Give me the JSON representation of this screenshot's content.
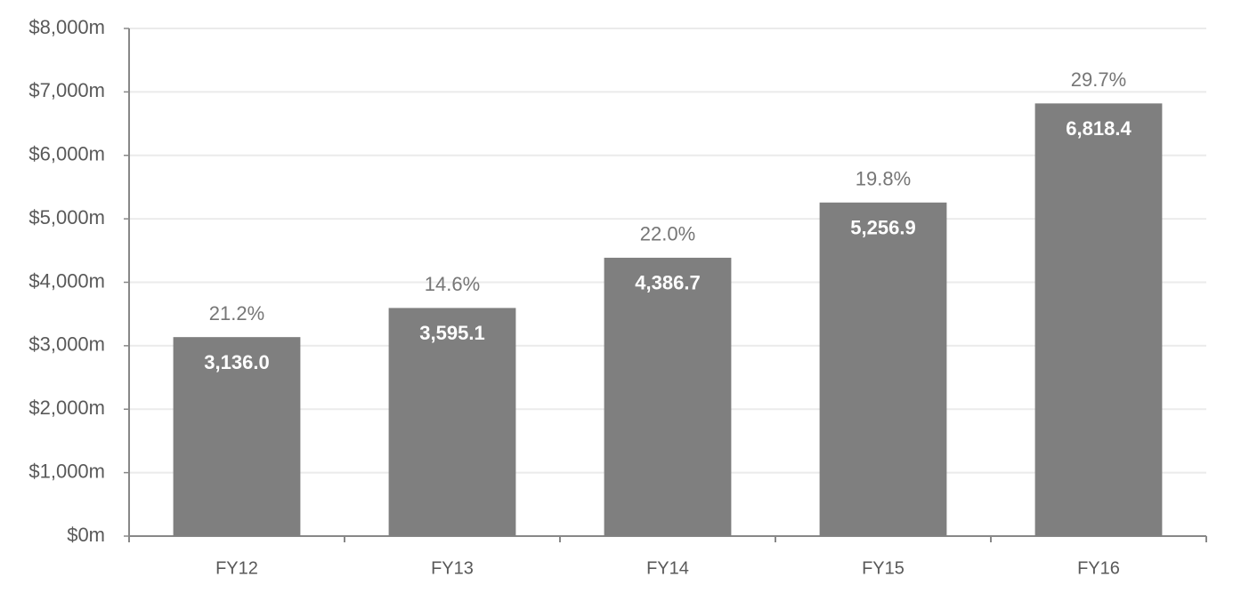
{
  "chart_data": {
    "type": "bar",
    "categories": [
      "FY12",
      "FY13",
      "FY14",
      "FY15",
      "FY16"
    ],
    "values": [
      3136.0,
      3595.1,
      4386.7,
      5256.9,
      6818.4
    ],
    "value_labels": [
      "3,136.0",
      "3,595.1",
      "4,386.7",
      "5,256.9",
      "6,818.4"
    ],
    "annotations": [
      "21.2%",
      "14.6%",
      "22.0%",
      "19.8%",
      "29.7%"
    ],
    "color": "#7f7f7f",
    "ylim": [
      0,
      8000
    ],
    "yticks": [
      {
        "value": 0,
        "label": "$0m"
      },
      {
        "value": 1000,
        "label": "$1,000m"
      },
      {
        "value": 2000,
        "label": "$2,000m"
      },
      {
        "value": 3000,
        "label": "$3,000m"
      },
      {
        "value": 4000,
        "label": "$4,000m"
      },
      {
        "value": 5000,
        "label": "$5,000m"
      },
      {
        "value": 6000,
        "label": "$6,000m"
      },
      {
        "value": 7000,
        "label": "$7,000m"
      },
      {
        "value": 8000,
        "label": "$8,000m"
      }
    ],
    "grid": true
  }
}
